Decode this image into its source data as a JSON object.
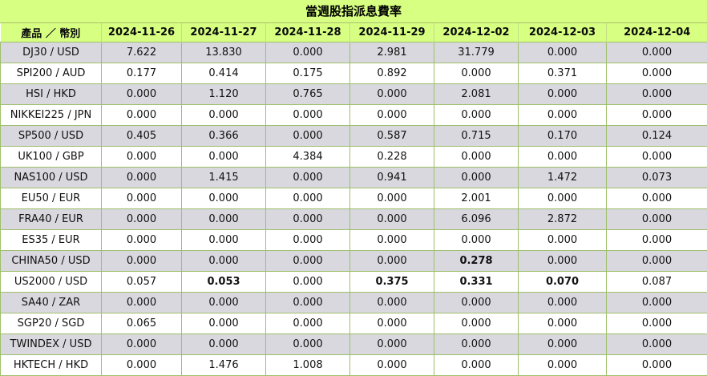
{
  "title": "當週股指派息費率",
  "header": {
    "product_label": "產品 ／ 幣別",
    "dates": [
      "2024-11-26",
      "2024-11-27",
      "2024-11-28",
      "2024-11-29",
      "2024-12-02",
      "2024-12-03",
      "2024-12-04"
    ]
  },
  "rows": [
    {
      "product": "DJ30 / USD",
      "values": [
        "7.622",
        "13.830",
        "0.000",
        "2.981",
        "31.779",
        "0.000",
        "0.000"
      ],
      "bold": [
        false,
        false,
        false,
        false,
        false,
        false,
        false
      ]
    },
    {
      "product": "SPI200 / AUD",
      "values": [
        "0.177",
        "0.414",
        "0.175",
        "0.892",
        "0.000",
        "0.371",
        "0.000"
      ],
      "bold": [
        false,
        false,
        false,
        false,
        false,
        false,
        false
      ]
    },
    {
      "product": "HSI / HKD",
      "values": [
        "0.000",
        "1.120",
        "0.765",
        "0.000",
        "2.081",
        "0.000",
        "0.000"
      ],
      "bold": [
        false,
        false,
        false,
        false,
        false,
        false,
        false
      ]
    },
    {
      "product": "NIKKEI225 / JPN",
      "values": [
        "0.000",
        "0.000",
        "0.000",
        "0.000",
        "0.000",
        "0.000",
        "0.000"
      ],
      "bold": [
        false,
        false,
        false,
        false,
        false,
        false,
        false
      ]
    },
    {
      "product": "SP500 / USD",
      "values": [
        "0.405",
        "0.366",
        "0.000",
        "0.587",
        "0.715",
        "0.170",
        "0.124"
      ],
      "bold": [
        false,
        false,
        false,
        false,
        false,
        false,
        false
      ]
    },
    {
      "product": "UK100 / GBP",
      "values": [
        "0.000",
        "0.000",
        "4.384",
        "0.228",
        "0.000",
        "0.000",
        "0.000"
      ],
      "bold": [
        false,
        false,
        false,
        false,
        false,
        false,
        false
      ]
    },
    {
      "product": "NAS100 / USD",
      "values": [
        "0.000",
        "1.415",
        "0.000",
        "0.941",
        "0.000",
        "1.472",
        "0.073"
      ],
      "bold": [
        false,
        false,
        false,
        false,
        false,
        false,
        false
      ]
    },
    {
      "product": "EU50 / EUR",
      "values": [
        "0.000",
        "0.000",
        "0.000",
        "0.000",
        "2.001",
        "0.000",
        "0.000"
      ],
      "bold": [
        false,
        false,
        false,
        false,
        false,
        false,
        false
      ]
    },
    {
      "product": "FRA40 / EUR",
      "values": [
        "0.000",
        "0.000",
        "0.000",
        "0.000",
        "6.096",
        "2.872",
        "0.000"
      ],
      "bold": [
        false,
        false,
        false,
        false,
        false,
        false,
        false
      ]
    },
    {
      "product": "ES35 / EUR",
      "values": [
        "0.000",
        "0.000",
        "0.000",
        "0.000",
        "0.000",
        "0.000",
        "0.000"
      ],
      "bold": [
        false,
        false,
        false,
        false,
        false,
        false,
        false
      ]
    },
    {
      "product": "CHINA50 / USD",
      "values": [
        "0.000",
        "0.000",
        "0.000",
        "0.000",
        "0.278",
        "0.000",
        "0.000"
      ],
      "bold": [
        false,
        false,
        false,
        false,
        true,
        false,
        false
      ]
    },
    {
      "product": "US2000 / USD",
      "values": [
        "0.057",
        "0.053",
        "0.000",
        "0.375",
        "0.331",
        "0.070",
        "0.087"
      ],
      "bold": [
        false,
        true,
        false,
        true,
        true,
        true,
        false
      ]
    },
    {
      "product": "SA40 / ZAR",
      "values": [
        "0.000",
        "0.000",
        "0.000",
        "0.000",
        "0.000",
        "0.000",
        "0.000"
      ],
      "bold": [
        false,
        false,
        false,
        false,
        false,
        false,
        false
      ]
    },
    {
      "product": "SGP20 / SGD",
      "values": [
        "0.065",
        "0.000",
        "0.000",
        "0.000",
        "0.000",
        "0.000",
        "0.000"
      ],
      "bold": [
        false,
        false,
        false,
        false,
        false,
        false,
        false
      ]
    },
    {
      "product": "TWINDEX / USD",
      "values": [
        "0.000",
        "0.000",
        "0.000",
        "0.000",
        "0.000",
        "0.000",
        "0.000"
      ],
      "bold": [
        false,
        false,
        false,
        false,
        false,
        false,
        false
      ]
    },
    {
      "product": "HKTECH / HKD",
      "values": [
        "0.000",
        "1.476",
        "1.008",
        "0.000",
        "0.000",
        "0.000",
        "0.000"
      ],
      "bold": [
        false,
        false,
        false,
        false,
        false,
        false,
        false
      ]
    }
  ]
}
